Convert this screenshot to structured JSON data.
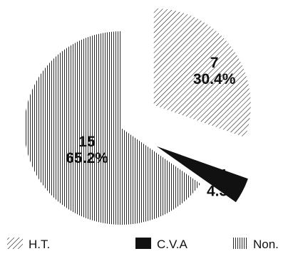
{
  "chart_data": {
    "type": "pie",
    "title": "",
    "slices": [
      {
        "label": "H.T.",
        "count": 7,
        "count_text": "7",
        "percent_text": "30.4%",
        "pattern": "diagonal-hatch",
        "exploded": true
      },
      {
        "label": "C.V.A",
        "count": 1,
        "count_text": "1",
        "percent_text": "4.3%",
        "pattern": "solid-black",
        "exploded": true
      },
      {
        "label": "Non.",
        "count": 15,
        "count_text": "15",
        "percent_text": "65.2%",
        "pattern": "vertical-hatch",
        "exploded": false
      }
    ],
    "legend": {
      "position": "bottom",
      "items": [
        {
          "label": "H.T.",
          "pattern": "diagonal-hatch"
        },
        {
          "label": "C.V.A",
          "pattern": "solid-black"
        },
        {
          "label": "Non.",
          "pattern": "vertical-hatch"
        }
      ]
    },
    "colors": {
      "ink": "#111111",
      "background": "#ffffff"
    }
  }
}
